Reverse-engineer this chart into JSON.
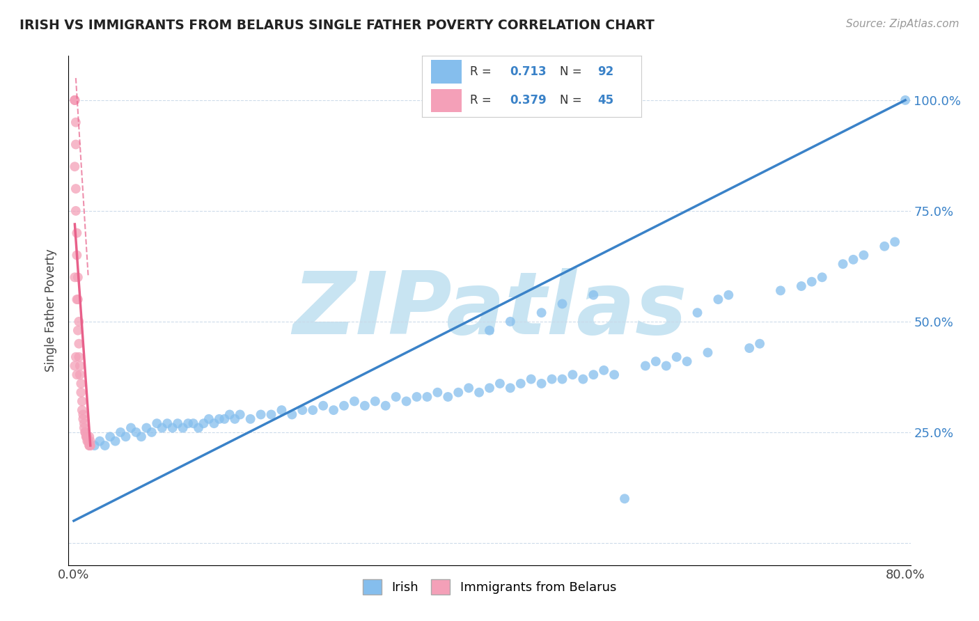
{
  "title": "IRISH VS IMMIGRANTS FROM BELARUS SINGLE FATHER POVERTY CORRELATION CHART",
  "source": "Source: ZipAtlas.com",
  "ylabel": "Single Father Poverty",
  "xlim": [
    -0.005,
    0.805
  ],
  "ylim": [
    -0.05,
    1.1
  ],
  "yticks": [
    0.0,
    0.25,
    0.5,
    0.75,
    1.0
  ],
  "ytick_labels": [
    "",
    "25.0%",
    "50.0%",
    "75.0%",
    "100.0%"
  ],
  "irish_R": 0.713,
  "irish_N": 92,
  "belarus_R": 0.379,
  "belarus_N": 45,
  "irish_color": "#85BEED",
  "belarus_color": "#F4A0B8",
  "irish_line_color": "#3A82C8",
  "belarus_line_color": "#E8608A",
  "watermark": "ZIPatlas",
  "watermark_color": "#C8E4F2",
  "background_color": "#FFFFFF",
  "irish_line_x0": 0.0,
  "irish_line_y0": 0.05,
  "irish_line_x1": 0.8,
  "irish_line_y1": 1.0,
  "belarus_line_x0": 0.001,
  "belarus_line_y0": 0.72,
  "belarus_line_x1": 0.016,
  "belarus_line_y1": 0.22,
  "belarus_line_dashed_x0": 0.002,
  "belarus_line_dashed_y0": 1.05,
  "belarus_line_dashed_x1": 0.014,
  "belarus_line_dashed_y1": 0.6,
  "irish_x": [
    0.02,
    0.025,
    0.03,
    0.035,
    0.04,
    0.045,
    0.05,
    0.055,
    0.06,
    0.065,
    0.07,
    0.075,
    0.08,
    0.085,
    0.09,
    0.095,
    0.1,
    0.105,
    0.11,
    0.115,
    0.12,
    0.125,
    0.13,
    0.135,
    0.14,
    0.145,
    0.15,
    0.155,
    0.16,
    0.17,
    0.18,
    0.19,
    0.2,
    0.21,
    0.22,
    0.23,
    0.24,
    0.25,
    0.26,
    0.27,
    0.28,
    0.29,
    0.3,
    0.31,
    0.32,
    0.33,
    0.34,
    0.35,
    0.36,
    0.37,
    0.38,
    0.39,
    0.4,
    0.41,
    0.42,
    0.43,
    0.44,
    0.45,
    0.46,
    0.47,
    0.48,
    0.49,
    0.5,
    0.51,
    0.52,
    0.53,
    0.55,
    0.56,
    0.57,
    0.58,
    0.59,
    0.6,
    0.61,
    0.62,
    0.63,
    0.65,
    0.66,
    0.68,
    0.7,
    0.71,
    0.72,
    0.74,
    0.75,
    0.76,
    0.78,
    0.79,
    0.8,
    0.4,
    0.42,
    0.45,
    0.47,
    0.5
  ],
  "irish_y": [
    0.22,
    0.23,
    0.22,
    0.24,
    0.23,
    0.25,
    0.24,
    0.26,
    0.25,
    0.24,
    0.26,
    0.25,
    0.27,
    0.26,
    0.27,
    0.26,
    0.27,
    0.26,
    0.27,
    0.27,
    0.26,
    0.27,
    0.28,
    0.27,
    0.28,
    0.28,
    0.29,
    0.28,
    0.29,
    0.28,
    0.29,
    0.29,
    0.3,
    0.29,
    0.3,
    0.3,
    0.31,
    0.3,
    0.31,
    0.32,
    0.31,
    0.32,
    0.31,
    0.33,
    0.32,
    0.33,
    0.33,
    0.34,
    0.33,
    0.34,
    0.35,
    0.34,
    0.35,
    0.36,
    0.35,
    0.36,
    0.37,
    0.36,
    0.37,
    0.37,
    0.38,
    0.37,
    0.38,
    0.39,
    0.38,
    0.1,
    0.4,
    0.41,
    0.4,
    0.42,
    0.41,
    0.52,
    0.43,
    0.55,
    0.56,
    0.44,
    0.45,
    0.57,
    0.58,
    0.59,
    0.6,
    0.63,
    0.64,
    0.65,
    0.67,
    0.68,
    1.0,
    0.48,
    0.5,
    0.52,
    0.54,
    0.56
  ],
  "belarus_x": [
    0.001,
    0.001,
    0.001,
    0.002,
    0.002,
    0.002,
    0.003,
    0.003,
    0.004,
    0.004,
    0.005,
    0.005,
    0.006,
    0.006,
    0.007,
    0.007,
    0.008,
    0.008,
    0.009,
    0.009,
    0.01,
    0.01,
    0.011,
    0.011,
    0.012,
    0.012,
    0.013,
    0.013,
    0.014,
    0.014,
    0.015,
    0.015,
    0.016,
    0.016,
    0.002,
    0.003,
    0.004,
    0.005,
    0.001,
    0.001,
    0.002,
    0.003,
    0.015,
    0.001,
    0.016
  ],
  "belarus_y": [
    1.0,
    1.0,
    1.0,
    0.95,
    0.9,
    0.75,
    0.7,
    0.65,
    0.6,
    0.55,
    0.5,
    0.45,
    0.4,
    0.38,
    0.36,
    0.34,
    0.32,
    0.3,
    0.29,
    0.28,
    0.27,
    0.26,
    0.25,
    0.25,
    0.24,
    0.24,
    0.24,
    0.23,
    0.23,
    0.23,
    0.22,
    0.22,
    0.22,
    0.22,
    0.8,
    0.55,
    0.48,
    0.42,
    0.85,
    0.6,
    0.42,
    0.38,
    0.24,
    0.4,
    0.23
  ]
}
